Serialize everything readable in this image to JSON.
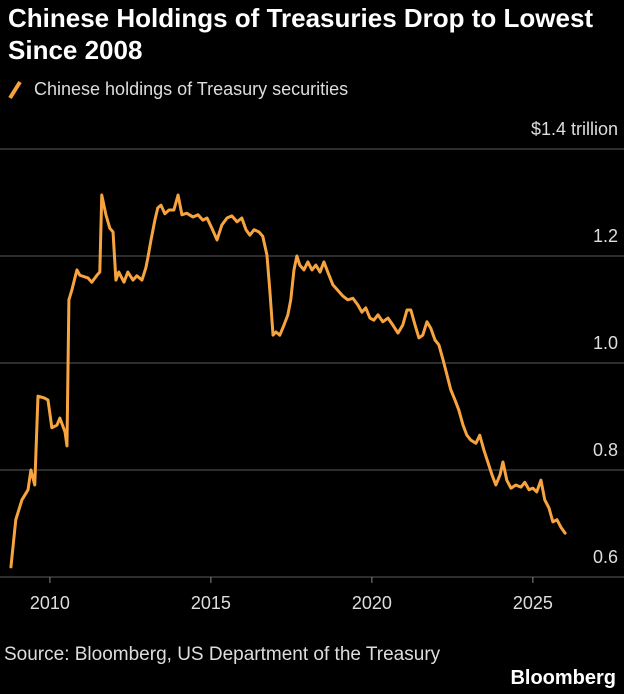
{
  "chart_data": {
    "type": "line",
    "title": "Chinese Holdings of Treasuries Drop to Lowest Since 2008",
    "source": "Source: Bloomberg, US Department of the Treasury",
    "brand": "Bloomberg",
    "x": [
      2008.79,
      2008.94,
      2009.13,
      2009.32,
      2009.41,
      2009.53,
      2009.63,
      2009.81,
      2009.94,
      2010.06,
      2010.22,
      2010.31,
      2010.47,
      2010.53,
      2010.59,
      2010.68,
      2010.84,
      2010.93,
      2011.18,
      2011.3,
      2011.46,
      2011.55,
      2011.61,
      2011.74,
      2011.86,
      2011.96,
      2012.05,
      2012.14,
      2012.3,
      2012.42,
      2012.58,
      2012.7,
      2012.86,
      2012.98,
      2013.04,
      2013.14,
      2013.26,
      2013.35,
      2013.45,
      2013.57,
      2013.7,
      2013.85,
      2013.98,
      2014.1,
      2014.25,
      2014.44,
      2014.6,
      2014.75,
      2014.88,
      2015.03,
      2015.19,
      2015.34,
      2015.5,
      2015.65,
      2015.81,
      2015.96,
      2016.09,
      2016.21,
      2016.34,
      2016.49,
      2016.61,
      2016.74,
      2016.83,
      2016.93,
      2017.02,
      2017.14,
      2017.27,
      2017.39,
      2017.48,
      2017.58,
      2017.67,
      2017.76,
      2017.89,
      2018.01,
      2018.14,
      2018.26,
      2018.39,
      2018.51,
      2018.63,
      2018.79,
      2018.94,
      2019.1,
      2019.25,
      2019.41,
      2019.57,
      2019.69,
      2019.81,
      2019.94,
      2020.06,
      2020.19,
      2020.34,
      2020.5,
      2020.65,
      2020.81,
      2020.96,
      2021.09,
      2021.21,
      2021.34,
      2021.46,
      2021.58,
      2021.71,
      2021.83,
      2021.96,
      2022.08,
      2022.21,
      2022.33,
      2022.45,
      2022.58,
      2022.7,
      2022.83,
      2022.95,
      2023.07,
      2023.23,
      2023.35,
      2023.48,
      2023.6,
      2023.73,
      2023.85,
      2023.98,
      2024.07,
      2024.19,
      2024.32,
      2024.47,
      2024.63,
      2024.75,
      2024.88,
      2025.0,
      2025.12,
      2025.25,
      2025.37,
      2025.5,
      2025.62,
      2025.75,
      2025.87,
      2026.0
    ],
    "series": [
      {
        "name": "Chinese holdings of Treasury securities",
        "color": "#f7a440",
        "values": [
          0.619,
          0.707,
          0.744,
          0.763,
          0.8,
          0.772,
          0.938,
          0.935,
          0.931,
          0.879,
          0.884,
          0.897,
          0.871,
          0.845,
          1.118,
          1.136,
          1.174,
          1.164,
          1.159,
          1.151,
          1.164,
          1.17,
          1.314,
          1.277,
          1.252,
          1.245,
          1.155,
          1.17,
          1.151,
          1.17,
          1.155,
          1.163,
          1.155,
          1.178,
          1.196,
          1.23,
          1.267,
          1.29,
          1.295,
          1.279,
          1.286,
          1.286,
          1.314,
          1.277,
          1.28,
          1.273,
          1.277,
          1.267,
          1.271,
          1.252,
          1.23,
          1.258,
          1.271,
          1.275,
          1.264,
          1.271,
          1.249,
          1.239,
          1.249,
          1.245,
          1.237,
          1.202,
          1.136,
          1.052,
          1.058,
          1.052,
          1.071,
          1.09,
          1.118,
          1.174,
          1.2,
          1.183,
          1.174,
          1.189,
          1.174,
          1.183,
          1.17,
          1.189,
          1.17,
          1.146,
          1.136,
          1.125,
          1.118,
          1.121,
          1.108,
          1.095,
          1.103,
          1.084,
          1.08,
          1.09,
          1.077,
          1.084,
          1.071,
          1.056,
          1.071,
          1.099,
          1.099,
          1.071,
          1.047,
          1.052,
          1.077,
          1.065,
          1.043,
          1.034,
          1.006,
          0.978,
          0.95,
          0.931,
          0.912,
          0.884,
          0.865,
          0.856,
          0.85,
          0.865,
          0.837,
          0.815,
          0.791,
          0.772,
          0.791,
          0.815,
          0.781,
          0.766,
          0.772,
          0.768,
          0.777,
          0.763,
          0.766,
          0.759,
          0.781,
          0.744,
          0.729,
          0.703,
          0.707,
          0.693,
          0.682
        ]
      }
    ],
    "xlim": [
      2008.45,
      2027.83
    ],
    "xticks": [
      2010,
      2015,
      2020,
      2025
    ],
    "ylim": [
      0.6,
      1.4
    ],
    "yticks": [
      0.6,
      0.8,
      {
        "value": 1,
        "label": "1.0"
      },
      1.2,
      {
        "value": 1.4,
        "label": "$1.4 trillion"
      }
    ],
    "grid": true
  }
}
